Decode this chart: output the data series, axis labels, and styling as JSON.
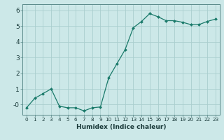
{
  "x": [
    0,
    1,
    2,
    3,
    4,
    5,
    6,
    7,
    8,
    9,
    10,
    11,
    12,
    13,
    14,
    15,
    16,
    17,
    18,
    19,
    20,
    21,
    22,
    23
  ],
  "y": [
    -0.2,
    0.4,
    0.7,
    1.0,
    -0.1,
    -0.2,
    -0.2,
    -0.4,
    -0.2,
    -0.15,
    1.7,
    2.6,
    3.5,
    4.9,
    5.3,
    5.8,
    5.6,
    5.35,
    5.35,
    5.25,
    5.1,
    5.1,
    5.3,
    5.45
  ],
  "xlabel": "Humidex (Indice chaleur)",
  "bg_color": "#cce8e8",
  "grid_color": "#aacece",
  "line_color": "#1a7a6a",
  "marker_color": "#1a7a6a",
  "xlim_min": -0.5,
  "xlim_max": 23.5,
  "ylim_min": -0.65,
  "ylim_max": 6.4,
  "yticks": [
    0,
    1,
    2,
    3,
    4,
    5,
    6
  ],
  "ytick_labels": [
    "-0",
    "1",
    "2",
    "3",
    "4",
    "5",
    "6"
  ],
  "xtick_labels": [
    "0",
    "1",
    "2",
    "3",
    "4",
    "5",
    "6",
    "7",
    "8",
    "9",
    "10",
    "11",
    "12",
    "13",
    "14",
    "15",
    "16",
    "17",
    "18",
    "19",
    "20",
    "21",
    "22",
    "23"
  ],
  "xlabel_fontsize": 6.5,
  "xlabel_fontweight": "bold",
  "ytick_fontsize": 6.5,
  "xtick_fontsize": 5.2,
  "line_width": 0.9,
  "marker_size": 2.0
}
